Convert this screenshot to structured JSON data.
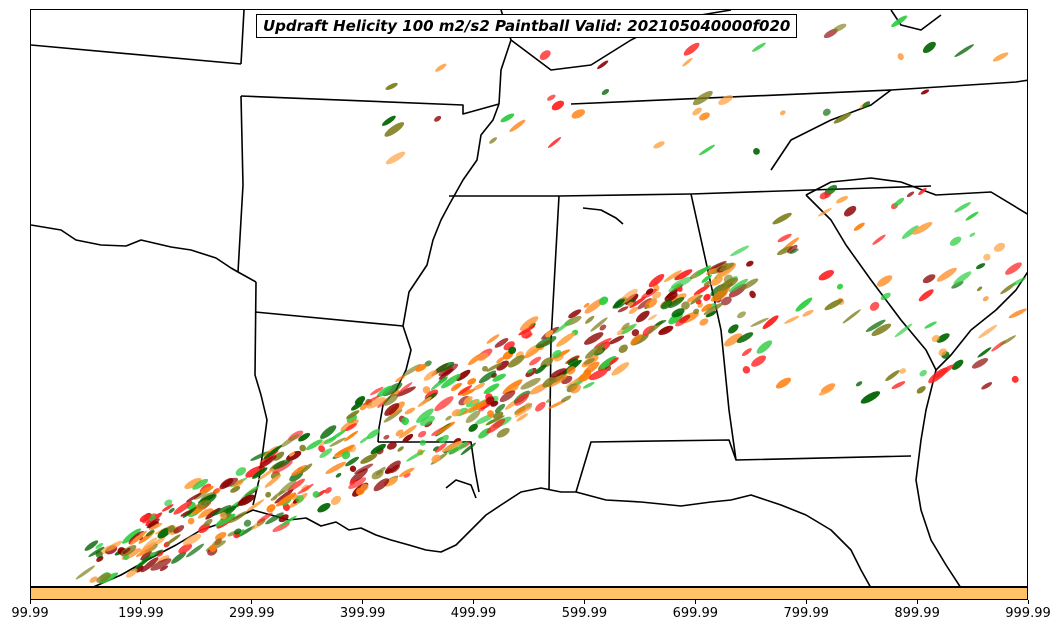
{
  "title": "Updraft Helicity 100 m2/s2 Paintball Valid: 202105040000f020",
  "colorbar": {
    "color": "#ffc266",
    "ticks": [
      "99.99",
      "199.99",
      "299.99",
      "399.99",
      "499.99",
      "599.99",
      "699.99",
      "799.99",
      "899.99",
      "999.99"
    ]
  },
  "paintball_colors": [
    "#ff2020",
    "#ff7f0e",
    "#2ecc40",
    "#808020",
    "#8b0000",
    "#006400",
    "#ffa040"
  ]
}
